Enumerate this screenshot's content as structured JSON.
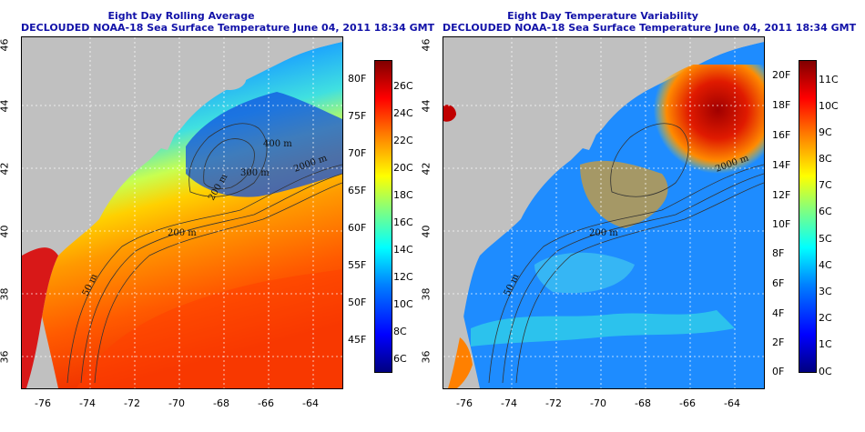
{
  "panels": [
    {
      "id": "average",
      "title": "Eight Day Rolling Average",
      "subtitle": "DECLOUDED NOAA-18 Sea Surface Temperature June 04, 2011 18:34 GMT",
      "colorbar_f": [
        "80F",
        "75F",
        "70F",
        "65F",
        "60F",
        "55F",
        "50F",
        "45F"
      ],
      "colorbar_c": [
        "26C",
        "24C",
        "22C",
        "20C",
        "18C",
        "16C",
        "14C",
        "12C",
        "10C",
        "8C",
        "6C"
      ],
      "contour_labels": [
        "400 m",
        "300 m",
        "2000 m",
        "200 m",
        "200 m",
        "50 m"
      ]
    },
    {
      "id": "variability",
      "title": "Eight Day Temperature Variability",
      "subtitle": "DECLOUDED NOAA-18 Sea Surface Temperature June 04, 2011 18:34 GMT",
      "colorbar_f": [
        "20F",
        "18F",
        "16F",
        "14F",
        "12F",
        "10F",
        "8F",
        "6F",
        "4F",
        "2F",
        "0F"
      ],
      "colorbar_c": [
        "11C",
        "10C",
        "9C",
        "8C",
        "7C",
        "6C",
        "5C",
        "4C",
        "3C",
        "2C",
        "1C",
        "0C"
      ],
      "contour_labels": [
        "2000 m",
        "200 m",
        "50 m"
      ]
    }
  ],
  "x_ticks": [
    "-76",
    "-74",
    "-72",
    "-70",
    "-68",
    "-66",
    "-64"
  ],
  "y_ticks": [
    "46",
    "44",
    "42",
    "40",
    "38",
    "36"
  ],
  "colors": {
    "title": "#1212a8",
    "land": "#c0c0c0",
    "colormap": [
      "#000080",
      "#0000ff",
      "#0080ff",
      "#00ffff",
      "#80ff80",
      "#ffff00",
      "#ff8000",
      "#ff0000",
      "#800000"
    ]
  }
}
